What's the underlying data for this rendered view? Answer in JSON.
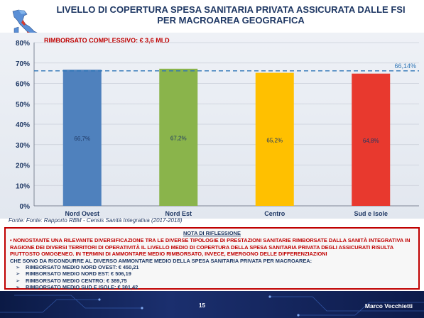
{
  "title": "LIVELLO DI COPERTURA SPESA SANITARIA PRIVATA ASSICURATA DALLE FSI",
  "subtitle": "PER MACROAREA GEOGRAFICA",
  "colors": {
    "red": "#c00000",
    "navy": "#1f3864",
    "nord_ovest": "#4f81bd",
    "nord_est": "#8ab44b",
    "centro": "#ffc000",
    "sud": "#e8392e",
    "avg_line": "#2e75b6"
  },
  "chart_data": {
    "type": "bar",
    "annotation": "RIMBORSATO COMPLESSIVO: € 3,6 MLD",
    "categories": [
      "Nord Ovest",
      "Nord Est",
      "Centro",
      "Sud e Isole"
    ],
    "values": [
      66.7,
      67.2,
      65.2,
      64.8
    ],
    "data_labels": [
      "66,7%",
      "67,2%",
      "65,2%",
      "64,8%"
    ],
    "ylim": [
      0,
      80
    ],
    "yticks": [
      "0%",
      "10%",
      "20%",
      "30%",
      "40%",
      "50%",
      "60%",
      "70%",
      "80%"
    ],
    "average": 66.14,
    "average_label": "66,14%",
    "grid": true
  },
  "source": "Fonte: Fonte: Rapporto RBM - Censis Sanità Integrativa (2017-2018)",
  "note": {
    "title": "NOTA DI RIFLESSIONE",
    "bullet": "•",
    "main": "NONOSTANTE UNA RILEVANTE DIVERSIFICAZIONE TRA LE DIVERSE TIPOLOGIE DI PRESTAZIONI SANITARIE RIMBORSATE DALLA SANITÀ INTEGRATIVA IN RAGIONE DEI DIVERSI TERRITORI DI OPERATIVITÀ IL LIVELLO MEDIO DI COPERTURA DELLA SPESA SANITARIA PRIVATA DEGLI ASSICURATI RISULTA PIUTTOSTO OMOGENEO. IN TERMINI DI AMMONTARE MEDIO RIMBORSATO, INVECE, EMERGONO DELLE DIFFERENZIAZIONI",
    "cont": "CHE SONO DA RICONDURRE AL DIVERSO AMMONTARE MEDIO DELLA SPESA SANITARIA PRIVATA PER MACROAREA:",
    "arrow": "➢",
    "items": [
      "RIMBORSATO MEDIO NORD OVEST: € 450,21",
      "RIMBORSATO MEDIO NORD EST: € 506,19",
      "RIMBORSATO MEDIO CENTRO: € 389,75",
      "RIMBORSATO MEDIO SUD E ISOLE: € 301,42"
    ]
  },
  "footer": {
    "page": "15",
    "author": "Marco Vecchietti"
  }
}
